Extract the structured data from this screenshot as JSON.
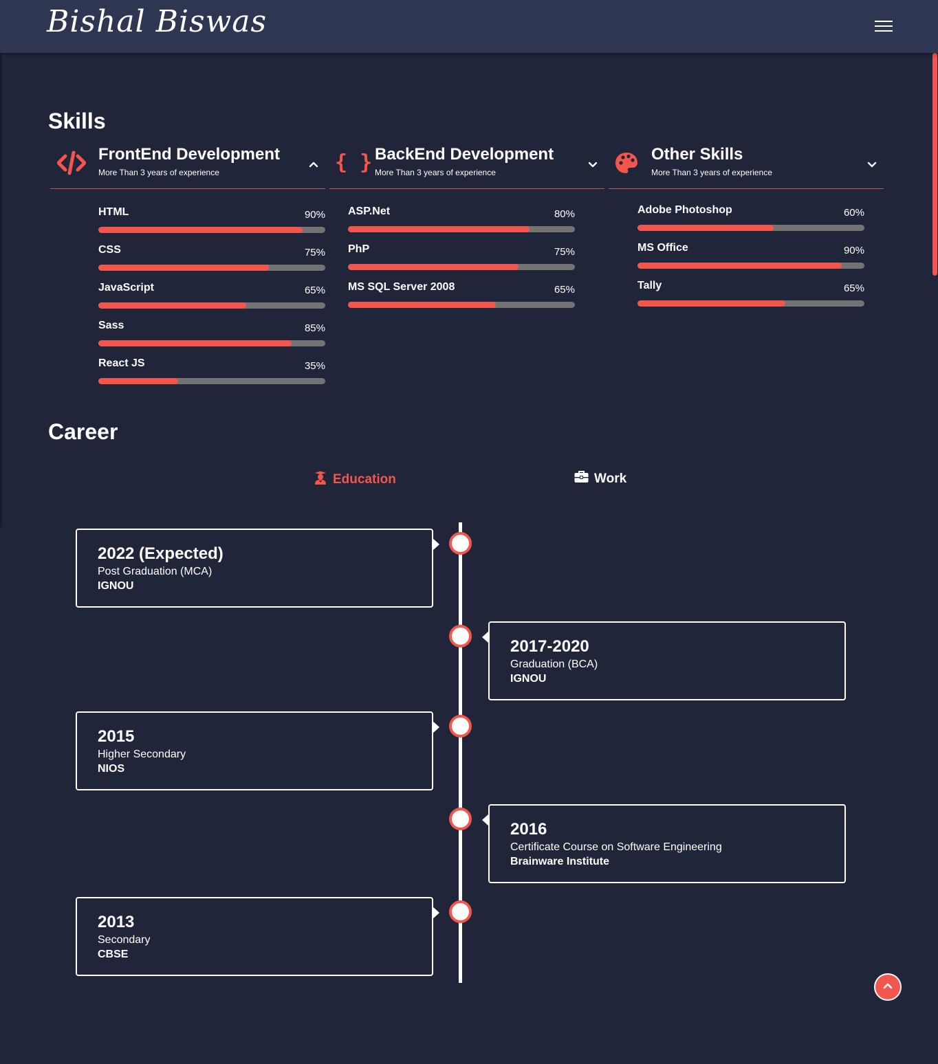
{
  "header": {
    "logo": "Bishal Biswas",
    "menu_icon": "hamburger-menu-icon"
  },
  "colors": {
    "accent": "#f2564c",
    "background": "#20253a",
    "header_bg": "#2e3652",
    "bar_track": "#737373"
  },
  "skills": {
    "title": "Skills",
    "groups": [
      {
        "title": "FrontEnd Development",
        "subtitle": "More Than 3 years of experience",
        "icon": "code-icon",
        "expanded": true,
        "items": [
          {
            "name": "HTML",
            "percent_label": "90%",
            "percent": 90
          },
          {
            "name": "CSS",
            "percent_label": "75%",
            "percent": 75
          },
          {
            "name": "JavaScript",
            "percent_label": "65%",
            "percent": 65
          },
          {
            "name": "Sass",
            "percent_label": "85%",
            "percent": 85
          },
          {
            "name": "React JS",
            "percent_label": "35%",
            "percent": 35
          }
        ]
      },
      {
        "title": "BackEnd Development",
        "subtitle": "More Than 3 years of experience",
        "icon": "curly-braces-icon",
        "expanded": false,
        "items": [
          {
            "name": "ASP.Net",
            "percent_label": "80%",
            "percent": 80
          },
          {
            "name": "PhP",
            "percent_label": "75%",
            "percent": 75
          },
          {
            "name": "MS SQL Server 2008",
            "percent_label": "65%",
            "percent": 65
          }
        ]
      },
      {
        "title": "Other Skills",
        "subtitle": "More Than 3 years of experience",
        "icon": "palette-icon",
        "expanded": false,
        "items": [
          {
            "name": "Adobe Photoshop",
            "percent_label": "60%",
            "percent": 60
          },
          {
            "name": "MS Office",
            "percent_label": "90%",
            "percent": 90
          },
          {
            "name": "Tally",
            "percent_label": "65%",
            "percent": 65
          }
        ]
      }
    ]
  },
  "career": {
    "title": "Career",
    "tabs": [
      {
        "label": "Education",
        "icon": "graduate-icon",
        "active": true
      },
      {
        "label": "Work",
        "icon": "briefcase-icon",
        "active": false
      }
    ],
    "timeline": [
      {
        "year": "2022 (Expected)",
        "degree": "Post Graduation (MCA)",
        "institute": "IGNOU",
        "side": "left"
      },
      {
        "year": "2017-2020",
        "degree": "Graduation (BCA)",
        "institute": "IGNOU",
        "side": "right"
      },
      {
        "year": "2015",
        "degree": "Higher Secondary",
        "institute": "NIOS",
        "side": "left"
      },
      {
        "year": "2016",
        "degree": "Certificate Course on Software Engineering",
        "institute": "Brainware Institute",
        "side": "right"
      },
      {
        "year": "2013",
        "degree": "Secondary",
        "institute": "CBSE",
        "side": "left"
      }
    ]
  },
  "scroll_top_icon": "chevron-up-icon"
}
